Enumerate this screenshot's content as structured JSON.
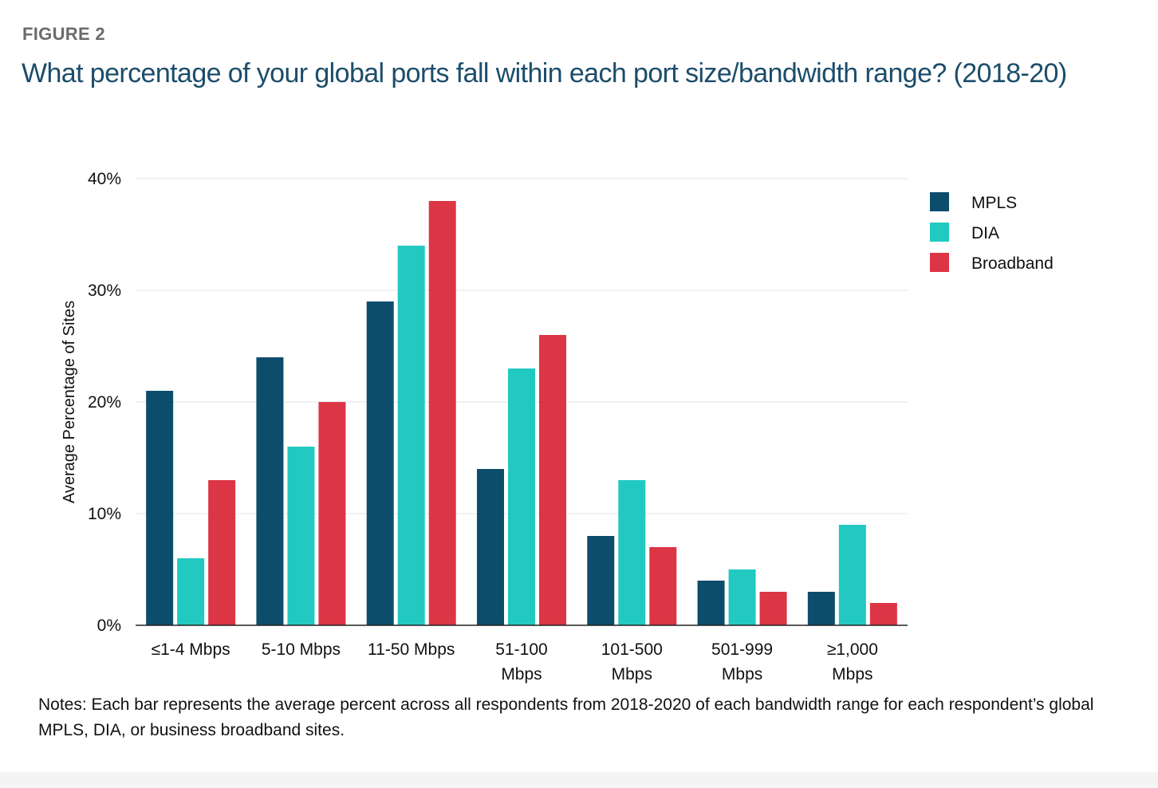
{
  "figure_label": "FIGURE 2",
  "title": "What percentage of your global ports fall within each port size/bandwidth range? (2018-20)",
  "notes": "Notes: Each bar represents the average percent across all respondents from 2018-2020 of each bandwidth range for each respondent’s global MPLS, DIA, or business broadband sites.",
  "chart_data": {
    "type": "bar",
    "categories": [
      [
        "≤1-4 Mbps"
      ],
      [
        "5-10 Mbps"
      ],
      [
        "11-50 Mbps"
      ],
      [
        "51-100",
        "Mbps"
      ],
      [
        "101-500",
        "Mbps"
      ],
      [
        "501-999",
        "Mbps"
      ],
      [
        "≥1,000",
        "Mbps"
      ]
    ],
    "series": [
      {
        "name": "MPLS",
        "color": "#0d4d6c",
        "values": [
          21,
          24,
          29,
          14,
          8,
          4,
          3
        ]
      },
      {
        "name": "DIA",
        "color": "#22c9c0",
        "values": [
          6,
          16,
          34,
          23,
          13,
          5,
          9
        ]
      },
      {
        "name": "Broadband",
        "color": "#dc3545",
        "values": [
          13,
          20,
          38,
          26,
          7,
          3,
          2
        ]
      }
    ],
    "ylabel": "Average Percentage of Sites",
    "xlabel": "",
    "ylim": [
      0,
      40
    ],
    "yticks": [
      "0%",
      "10%",
      "20%",
      "30%",
      "40%"
    ],
    "ytick_values": [
      0,
      10,
      20,
      30,
      40
    ],
    "grid": true,
    "legend": "top-right"
  }
}
